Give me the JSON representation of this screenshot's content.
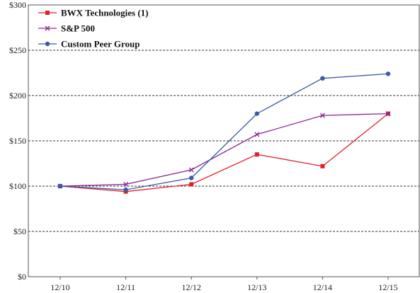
{
  "chart_data": {
    "type": "line",
    "categories": [
      "12/10",
      "12/11",
      "12/12",
      "12/13",
      "12/14",
      "12/15"
    ],
    "series": [
      {
        "name": "BWX Technologies (1)",
        "color": "#e0202a",
        "marker": "square",
        "values": [
          100,
          94,
          102,
          135,
          122,
          180
        ]
      },
      {
        "name": "S&P 500",
        "color": "#8a2a90",
        "marker": "x",
        "values": [
          100,
          102,
          118,
          157,
          178,
          180
        ]
      },
      {
        "name": "Custom Peer Group",
        "color": "#3a5aa6",
        "marker": "circle",
        "values": [
          100,
          96,
          109,
          180,
          219,
          224
        ]
      }
    ],
    "y_ticks": [
      "$0",
      "$50",
      "$100",
      "$150",
      "$200",
      "$250",
      "$300"
    ],
    "ylim": [
      0,
      300
    ],
    "grid": "dashed horizontal",
    "legend": "top-left"
  }
}
